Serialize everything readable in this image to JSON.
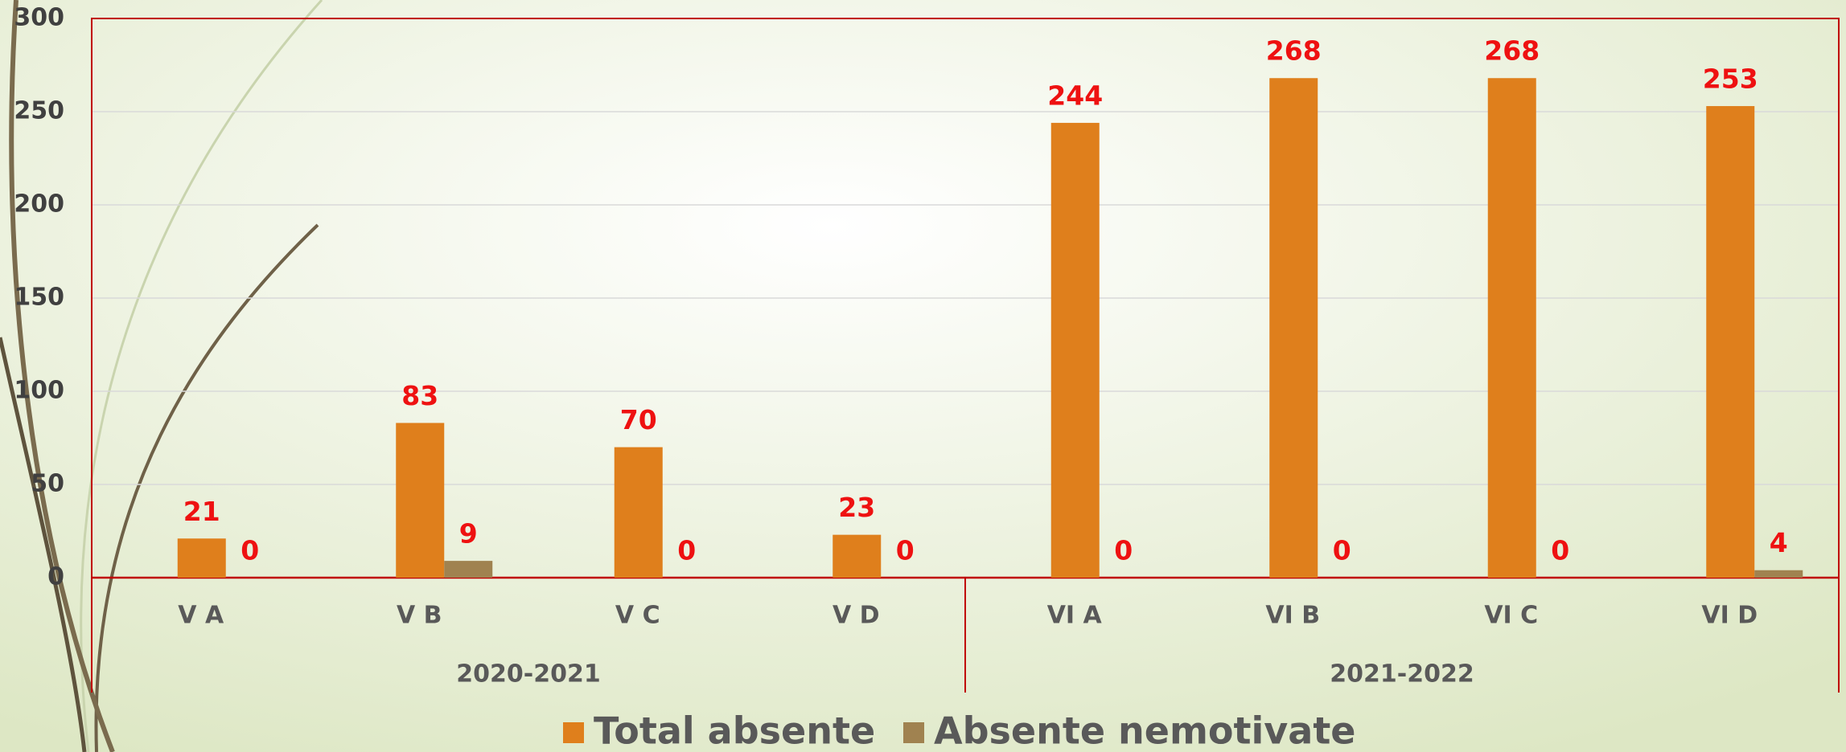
{
  "chart_data": {
    "type": "bar",
    "categories": [
      "V A",
      "V B",
      "V C",
      "V D",
      "VI A",
      "VI B",
      "VI C",
      "VI D"
    ],
    "group_labels": [
      "2020-2021",
      "2021-2022"
    ],
    "series": [
      {
        "name": "Total absente",
        "color": "#df7f1c",
        "values": [
          21,
          83,
          70,
          23,
          244,
          268,
          268,
          253
        ]
      },
      {
        "name": "Absente nemotivate",
        "color": "#a08250",
        "values": [
          0,
          9,
          0,
          0,
          0,
          0,
          0,
          4
        ]
      }
    ],
    "ylim": [
      0,
      300
    ],
    "yticks": [
      0,
      50,
      100,
      150,
      200,
      250,
      300
    ],
    "grid": true
  }
}
